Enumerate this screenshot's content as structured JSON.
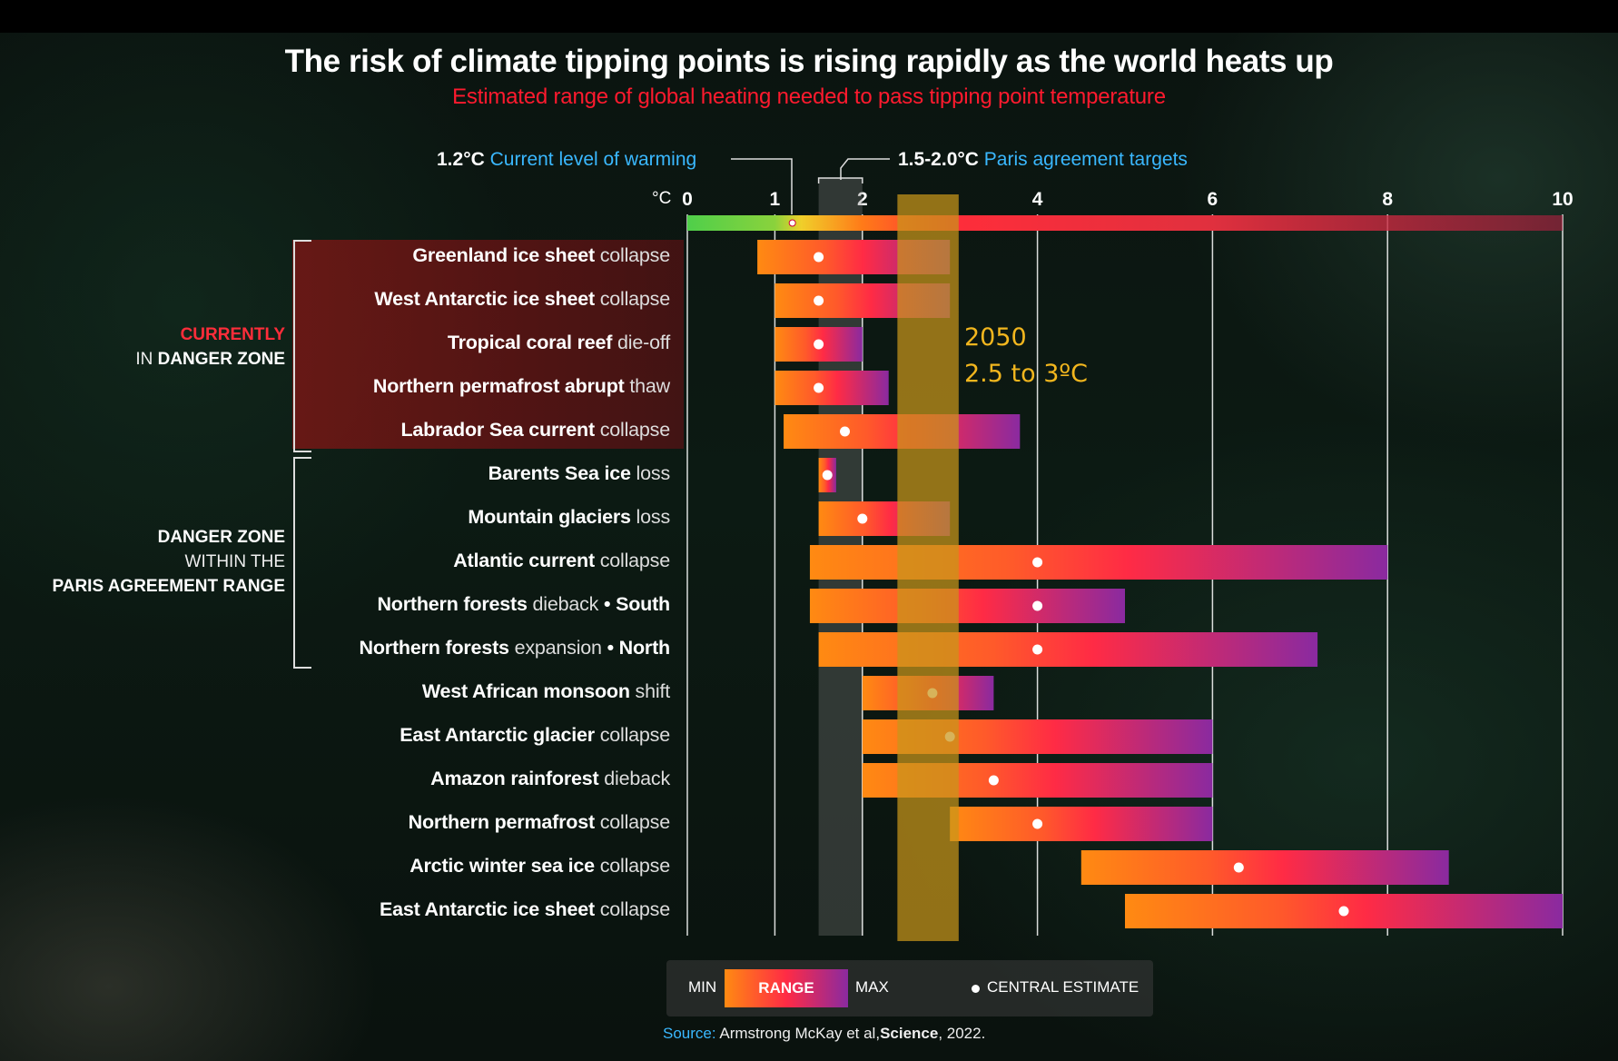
{
  "chart_data": {
    "type": "bar",
    "title": "The risk of climate tipping points is rising rapidly as the world heats up",
    "subtitle": "Estimated range of global heating needed to pass tipping point temperature",
    "x_unit": "°C",
    "xlim": [
      0,
      10
    ],
    "x_ticks": [
      0,
      1,
      2,
      4,
      6,
      8,
      10
    ],
    "current_warming": {
      "value": 1.2,
      "value_label": "1.2°C",
      "label": "Current level of warming"
    },
    "paris_targets": {
      "range": [
        1.5,
        2.0
      ],
      "value_label": "1.5-2.0°C",
      "label": "Paris agreement targets"
    },
    "highlight_2050": {
      "range": [
        2.4,
        3.1
      ],
      "line1": "2050",
      "line2": "2.5 to 3ºC"
    },
    "groups": [
      {
        "name": "CURRENTLY IN DANGER ZONE",
        "rows": [
          0,
          4
        ]
      },
      {
        "name": "DANGER ZONE WITHIN THE PARIS AGREEMENT RANGE",
        "rows": [
          5,
          9
        ]
      }
    ],
    "tipping_points": [
      {
        "bold": "Greenland ice sheet",
        "rest": "collapse",
        "min": 0.8,
        "central": 1.5,
        "max": 3.0
      },
      {
        "bold": "West Antarctic ice sheet",
        "rest": "collapse",
        "min": 1.0,
        "central": 1.5,
        "max": 3.0
      },
      {
        "bold": "Tropical coral reef",
        "rest": "die-off",
        "min": 1.0,
        "central": 1.5,
        "max": 2.0
      },
      {
        "bold": "Northern permafrost abrupt",
        "rest": "thaw",
        "min": 1.0,
        "central": 1.5,
        "max": 2.3
      },
      {
        "bold": "Labrador Sea current",
        "rest": "collapse",
        "min": 1.1,
        "central": 1.8,
        "max": 3.8
      },
      {
        "bold": "Barents Sea ice",
        "rest": "loss",
        "min": 1.5,
        "central": 1.6,
        "max": 1.7
      },
      {
        "bold": "Mountain glaciers",
        "rest": "loss",
        "min": 1.5,
        "central": 2.0,
        "max": 3.0
      },
      {
        "bold": "Atlantic current",
        "rest": "collapse",
        "min": 1.4,
        "central": 4.0,
        "max": 8.0
      },
      {
        "bold": "Northern forests",
        "rest": "dieback",
        "suffix": "South",
        "min": 1.4,
        "central": 4.0,
        "max": 5.0
      },
      {
        "bold": "Northern forests",
        "rest": "expansion",
        "suffix": "North",
        "min": 1.5,
        "central": 4.0,
        "max": 7.2
      },
      {
        "bold": "West African monsoon",
        "rest": "shift",
        "min": 2.0,
        "central": 2.8,
        "max": 3.5
      },
      {
        "bold": "East Antarctic glacier",
        "rest": "collapse",
        "min": 2.0,
        "central": 3.0,
        "max": 6.0
      },
      {
        "bold": "Amazon rainforest",
        "rest": "dieback",
        "min": 2.0,
        "central": 3.5,
        "max": 6.0
      },
      {
        "bold": "Northern permafrost",
        "rest": "collapse",
        "min": 3.0,
        "central": 4.0,
        "max": 6.0
      },
      {
        "bold": "Arctic winter sea ice",
        "rest": "collapse",
        "min": 4.5,
        "central": 6.3,
        "max": 8.7
      },
      {
        "bold": "East Antarctic ice sheet",
        "rest": "collapse",
        "min": 5.0,
        "central": 7.5,
        "max": 10.0
      }
    ],
    "legend": {
      "min": "MIN",
      "range": "RANGE",
      "max": "MAX",
      "central": "CENTRAL ESTIMATE"
    }
  },
  "zone_labels": {
    "current_line1": "CURRENTLY",
    "current_line2_prefix": "IN",
    "current_line2_bold": "DANGER ZONE",
    "paris_line1": "DANGER ZONE",
    "paris_line2": "WITHIN THE",
    "paris_line3": "PARIS AGREEMENT RANGE"
  },
  "source": {
    "label": "Source:",
    "authors": "Armstrong McKay et al,",
    "journal": "Science",
    "year": ", 2022."
  },
  "colors": {
    "min": "#ff8a12",
    "mid": "#ff2b45",
    "max": "#8a2aa0",
    "accent_blue": "#3ab8ff",
    "accent_red": "#ff1a2e",
    "highlight": "#c8961a"
  }
}
